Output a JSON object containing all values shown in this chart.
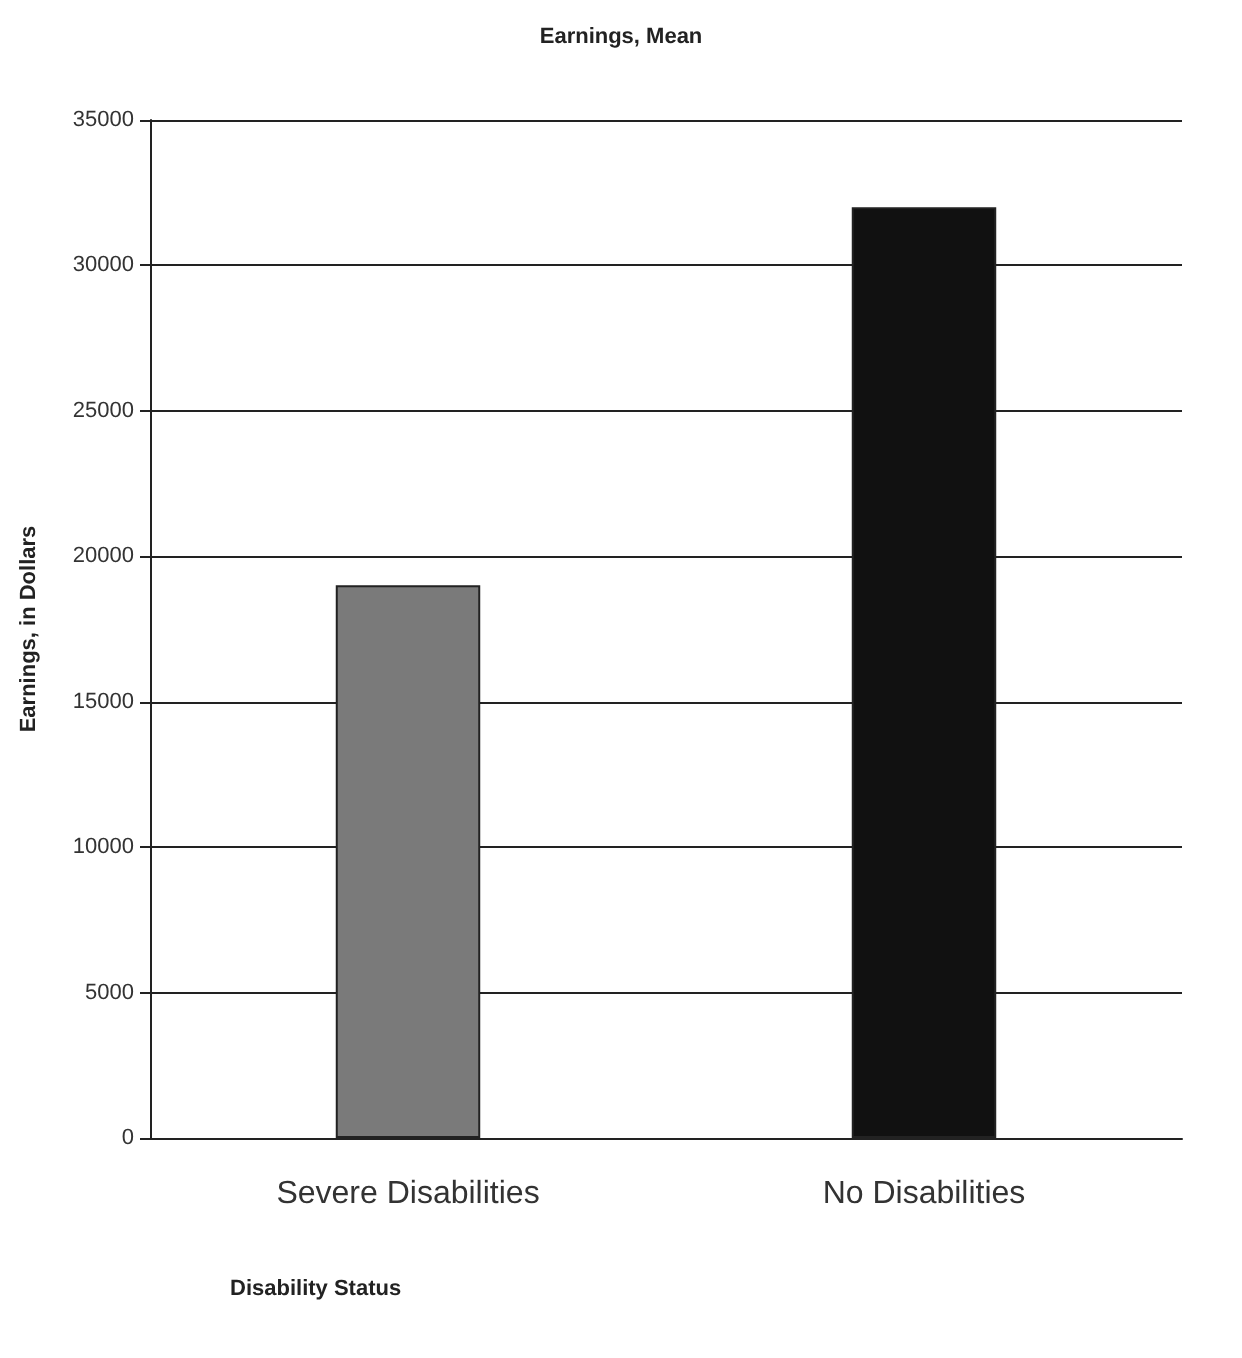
{
  "chart_data": {
    "type": "bar",
    "title": "Earnings, Mean",
    "xlabel": "Disability Status",
    "ylabel": "Earnings, in Dollars",
    "categories": [
      "Severe Disabilities",
      "No Disabilities"
    ],
    "values": [
      19000,
      32000
    ],
    "colors": [
      "#7a7a7a",
      "#111111"
    ],
    "ylim": [
      0,
      35000
    ],
    "yticks": [
      0,
      5000,
      10000,
      15000,
      20000,
      25000,
      30000,
      35000
    ],
    "grid": "y"
  }
}
